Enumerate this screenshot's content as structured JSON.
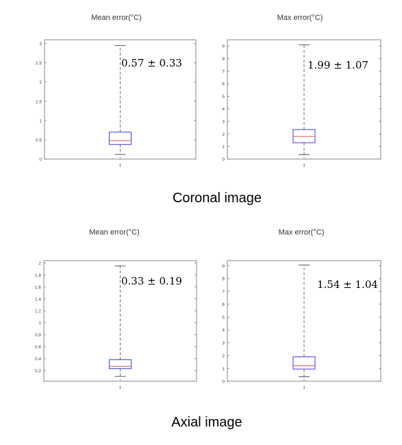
{
  "captions": [
    "Coronal image",
    "Axial image"
  ],
  "colors": {
    "box": "#3b3bd9",
    "median": "#d9534f",
    "whisker": "#555555",
    "axis": "#666666"
  },
  "chart_data": [
    {
      "type": "box",
      "title": "Mean error(°C)",
      "categories": [
        "1"
      ],
      "ylim": [
        0,
        3.1
      ],
      "yticks": [
        0,
        0.5,
        1,
        1.5,
        2,
        2.5,
        3
      ],
      "ytick_labels": [
        "0",
        "0.5",
        "1",
        "1.5",
        "2",
        "2.5",
        "3"
      ],
      "box": {
        "min": 0.12,
        "q1": 0.38,
        "median": 0.48,
        "q3": 0.7,
        "max": 2.95
      },
      "annotation": "0.57 ± 0.33",
      "group": "Coronal image"
    },
    {
      "type": "box",
      "title": "Max error(°C)",
      "categories": [
        "1"
      ],
      "ylim": [
        0,
        9.5
      ],
      "yticks": [
        0,
        1,
        2,
        3,
        4,
        5,
        6,
        7,
        8,
        9
      ],
      "ytick_labels": [
        "0",
        "1",
        "2",
        "3",
        "4",
        "5",
        "6",
        "7",
        "8",
        "9"
      ],
      "box": {
        "min": 0.35,
        "q1": 1.3,
        "median": 1.8,
        "q3": 2.35,
        "max": 9.1
      },
      "annotation": "1.99 ± 1.07",
      "group": "Coronal image"
    },
    {
      "type": "box",
      "title": "Mean error(°C)",
      "categories": [
        "1"
      ],
      "ylim": [
        0.02,
        2.04
      ],
      "yticks": [
        0.2,
        0.4,
        0.6,
        0.8,
        1,
        1.2,
        1.4,
        1.6,
        1.8,
        2
      ],
      "ytick_labels": [
        "0.2",
        "0.4",
        "0.6",
        "0.8",
        "1",
        "1.2",
        "1.4",
        "1.6",
        "1.8",
        "2"
      ],
      "box": {
        "min": 0.1,
        "q1": 0.23,
        "median": 0.27,
        "q3": 0.38,
        "max": 1.95
      },
      "annotation": "0.33 ± 0.19",
      "group": "Axial image"
    },
    {
      "type": "box",
      "title": "Max error(°C)",
      "categories": [
        "1"
      ],
      "ylim": [
        0,
        9.4
      ],
      "yticks": [
        0,
        1,
        2,
        3,
        4,
        5,
        6,
        7,
        8,
        9
      ],
      "ytick_labels": [
        "0",
        "1",
        "2",
        "3",
        "4",
        "5",
        "6",
        "7",
        "8",
        "9"
      ],
      "box": {
        "min": 0.35,
        "q1": 0.95,
        "median": 1.2,
        "q3": 1.9,
        "max": 9.05
      },
      "annotation": "1.54 ± 1.04",
      "group": "Axial image"
    }
  ]
}
